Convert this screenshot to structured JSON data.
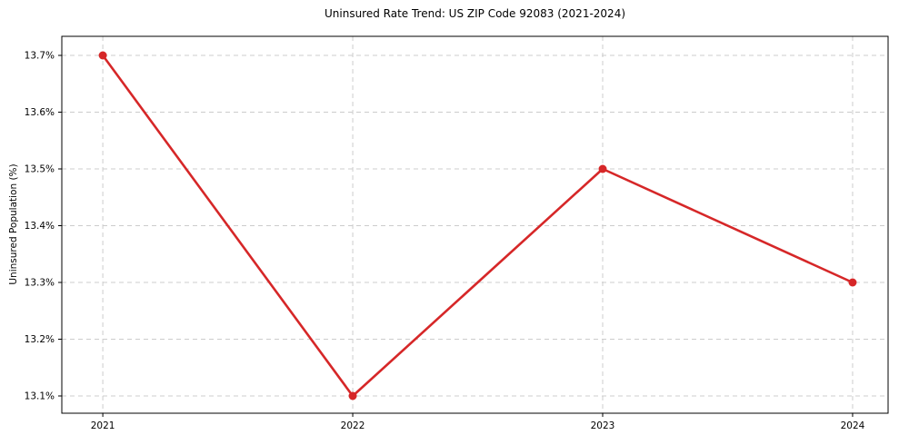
{
  "chart": {
    "title": "Uninsured Rate Trend: US ZIP Code 92083 (2021-2024)",
    "ylabel": "Uninsured Population (%)"
  },
  "chart_data": {
    "type": "line",
    "title": "Uninsured Rate Trend: US ZIP Code 92083 (2021-2024)",
    "xlabel": "",
    "ylabel": "Uninsured Population (%)",
    "x": [
      2021,
      2022,
      2023,
      2024
    ],
    "values": [
      13.7,
      13.1,
      13.5,
      13.3
    ],
    "xticks": [
      2021,
      2022,
      2023,
      2024
    ],
    "xtick_labels": [
      "2021",
      "2022",
      "2023",
      "2024"
    ],
    "yticks": [
      13.1,
      13.2,
      13.3,
      13.4,
      13.5,
      13.6,
      13.7
    ],
    "ytick_labels": [
      "13.1%",
      "13.2%",
      "13.3%",
      "13.4%",
      "13.5%",
      "13.6%",
      "13.7%"
    ],
    "xlim": [
      2020.836,
      2024.142
    ],
    "ylim": [
      13.0696,
      13.7336
    ],
    "grid": true,
    "grid_style": "dashed",
    "legend_position": "none",
    "colors": {
      "line": "#d62728",
      "marker": "#d62728",
      "grid": "#cccccc",
      "spine": "#000000",
      "text": "#000000",
      "background": "#ffffff"
    }
  }
}
